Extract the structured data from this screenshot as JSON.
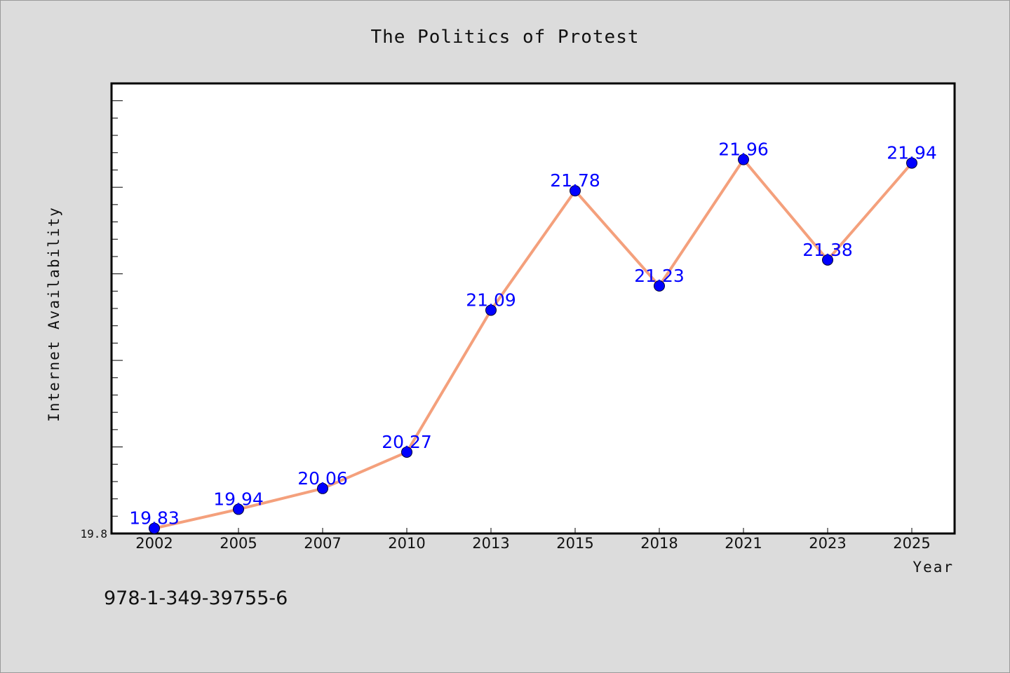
{
  "chart_data": {
    "type": "line",
    "title": "The Politics of Protest",
    "xlabel": "Year",
    "ylabel": "Internet Availability",
    "categories": [
      "2002",
      "2005",
      "2007",
      "2010",
      "2013",
      "2015",
      "2018",
      "2021",
      "2023",
      "2025"
    ],
    "series": [
      {
        "values": [
          19.83,
          19.94,
          20.06,
          20.27,
          21.09,
          21.78,
          21.23,
          21.96,
          21.38,
          21.94
        ],
        "data_labels": [
          "19.83",
          "19.94",
          "20.06",
          "20.27",
          "21.09",
          "21.78",
          "21.23",
          "21.96",
          "21.38",
          "21.94"
        ],
        "line_color": "#f4a07c",
        "marker_color": "#0000ff"
      }
    ],
    "ylim": [
      19.8,
      22.4
    ],
    "y_tick_labels": [
      "19.8"
    ],
    "grid": false,
    "legend": "none"
  },
  "footer_text": "978-1-349-39755-6",
  "colors": {
    "background": "#dcdcdc",
    "plot_background": "#ffffff",
    "label": "#0000ff"
  }
}
